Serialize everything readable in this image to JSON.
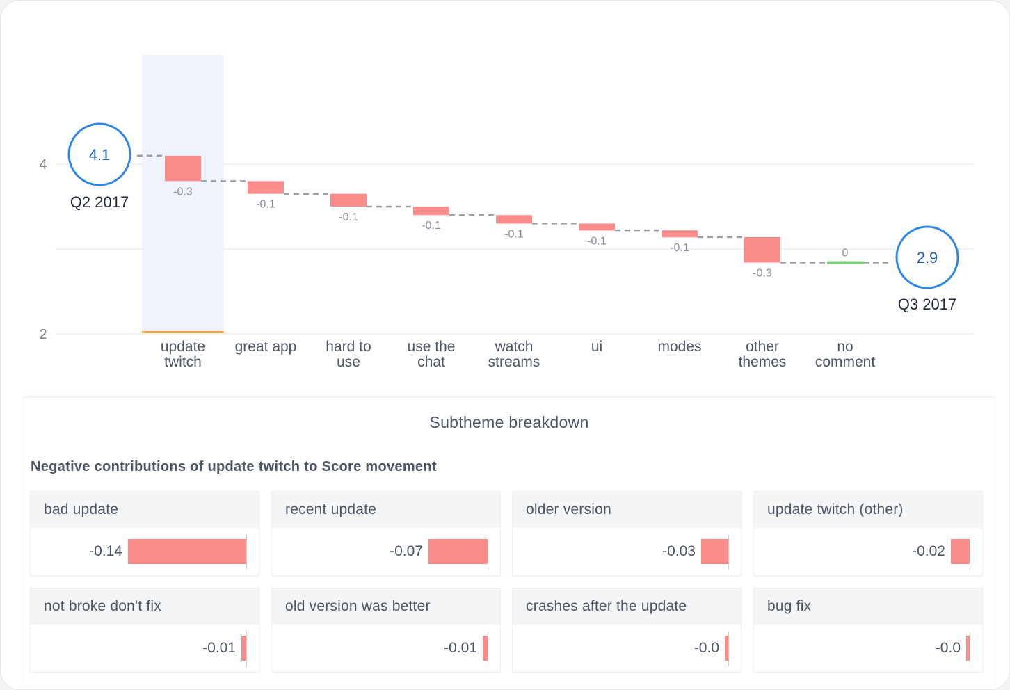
{
  "chart_data": {
    "type": "waterfall",
    "start": {
      "label": "Q2 2017",
      "value": 4.1
    },
    "end": {
      "label": "Q3 2017",
      "value": 2.9
    },
    "y_ticks": [
      4,
      2
    ],
    "ylim": [
      2,
      5
    ],
    "categories": [
      "update twitch",
      "great app",
      "hard to use",
      "use the chat",
      "watch streams",
      "ui",
      "modes",
      "other themes",
      "no comment"
    ],
    "category_lines": [
      [
        "update",
        "twitch"
      ],
      [
        "great app"
      ],
      [
        "hard to",
        "use"
      ],
      [
        "use the",
        "chat"
      ],
      [
        "watch",
        "streams"
      ],
      [
        "ui"
      ],
      [
        "modes"
      ],
      [
        "other",
        "themes"
      ],
      [
        "no",
        "comment"
      ]
    ],
    "bar_labels": [
      "-0.3",
      "-0.1",
      "-0.1",
      "-0.1",
      "-0.1",
      "-0.1",
      "-0.1",
      "-0.3",
      "0"
    ],
    "values": [
      -0.3,
      -0.15,
      -0.15,
      -0.1,
      -0.1,
      -0.08,
      -0.08,
      -0.3,
      0.0
    ],
    "selected": "update twitch",
    "colors": {
      "negative": "#fa8c8c",
      "zero": "#7fd07b",
      "highlight": "#eef3fd",
      "highlight_line": "#f4a64a",
      "circle": "#2f86e8",
      "circle_text": "#1f5fb0"
    }
  },
  "breakdown": {
    "title": "Subtheme breakdown",
    "subtitle": "Negative contributions of update twitch to Score movement",
    "items": [
      {
        "name": "bad update",
        "label": "-0.14",
        "value": 0.14
      },
      {
        "name": "recent update",
        "label": "-0.07",
        "value": 0.07
      },
      {
        "name": "older version",
        "label": "-0.03",
        "value": 0.032
      },
      {
        "name": "update twitch (other)",
        "label": "-0.02",
        "value": 0.022
      },
      {
        "name": "not broke don't fix",
        "label": "-0.01",
        "value": 0.006
      },
      {
        "name": "old version was better",
        "label": "-0.01",
        "value": 0.006
      },
      {
        "name": "crashes after the update",
        "label": "-0.0",
        "value": 0.003
      },
      {
        "name": "bug fix",
        "label": "-0.0",
        "value": 0.002
      }
    ]
  }
}
